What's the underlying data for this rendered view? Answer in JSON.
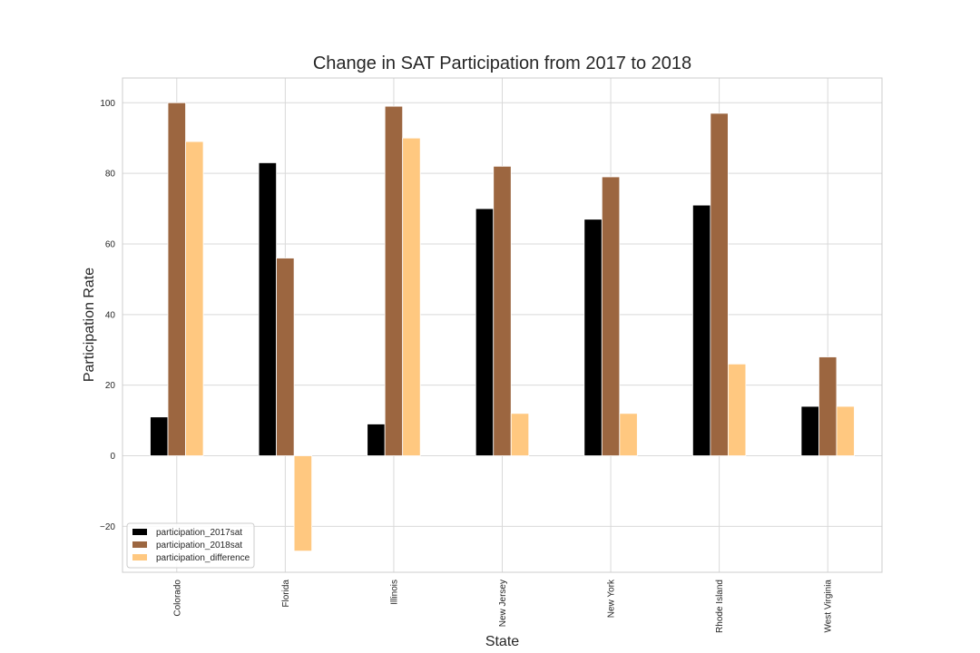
{
  "chart_data": {
    "type": "bar",
    "title": "Change in SAT Participation from 2017 to 2018",
    "xlabel": "State",
    "ylabel": "Participation Rate",
    "categories": [
      "Colorado",
      "Florida",
      "Illinois",
      "New Jersey",
      "New York",
      "Rhode Island",
      "West Virginia"
    ],
    "series": [
      {
        "name": "participation_2017sat",
        "color": "#000000",
        "values": [
          11,
          83,
          9,
          70,
          67,
          71,
          14
        ]
      },
      {
        "name": "participation_2018sat",
        "color": "#9c6640",
        "values": [
          100,
          56,
          99,
          82,
          79,
          97,
          28
        ]
      },
      {
        "name": "participation_difference",
        "color": "#ffc880",
        "values": [
          89,
          -27,
          90,
          12,
          12,
          26,
          14
        ]
      }
    ],
    "yticks": [
      -20,
      0,
      20,
      40,
      60,
      80,
      100
    ],
    "ylim": [
      -33,
      107
    ],
    "grid": true,
    "legend_position": "lower-left"
  }
}
